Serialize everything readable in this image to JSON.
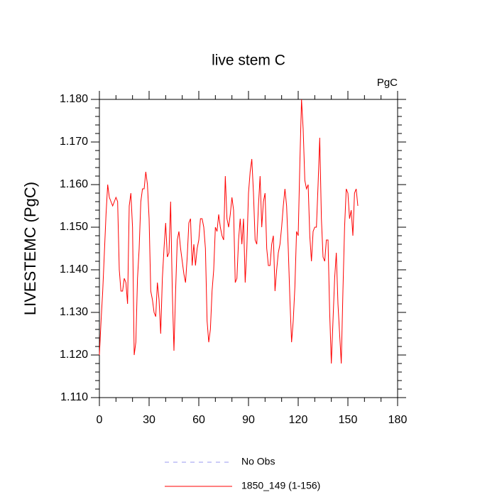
{
  "chart_data": {
    "type": "line",
    "title": "live stem C",
    "units": "PgC",
    "ylabel": "LIVESTEMC  (PgC)",
    "xlim": [
      0,
      180
    ],
    "ylim": [
      1.11,
      1.18
    ],
    "xticks": [
      0,
      30,
      60,
      90,
      120,
      150,
      180
    ],
    "xminorticks": [
      10,
      20,
      40,
      50,
      70,
      80,
      100,
      110,
      130,
      140,
      160,
      170
    ],
    "yticks": [
      {
        "value": 1.11,
        "label": "1.110"
      },
      {
        "value": 1.12,
        "label": "1.120"
      },
      {
        "value": 1.13,
        "label": "1.130"
      },
      {
        "value": 1.14,
        "label": "1.140"
      },
      {
        "value": 1.15,
        "label": "1.150"
      },
      {
        "value": 1.16,
        "label": "1.160"
      },
      {
        "value": 1.17,
        "label": "1.170"
      },
      {
        "value": 1.18,
        "label": "1.180"
      }
    ],
    "yminorticks": [
      1.112,
      1.114,
      1.116,
      1.118,
      1.122,
      1.124,
      1.126,
      1.128,
      1.132,
      1.134,
      1.136,
      1.138,
      1.142,
      1.144,
      1.146,
      1.148,
      1.152,
      1.154,
      1.156,
      1.158,
      1.162,
      1.164,
      1.166,
      1.168,
      1.172,
      1.174,
      1.176,
      1.178
    ],
    "legend": [
      {
        "name": "No Obs",
        "color": "#9a9af0",
        "dash": "6 6"
      }
    ],
    "x": [
      0,
      1,
      2,
      3,
      4,
      5,
      6,
      7,
      8,
      9,
      10,
      11,
      12,
      13,
      14,
      15,
      16,
      17,
      18,
      19,
      20,
      21,
      22,
      23,
      24,
      25,
      26,
      27,
      28,
      29,
      30,
      31,
      32,
      33,
      34,
      35,
      36,
      37,
      38,
      39,
      40,
      41,
      42,
      43,
      44,
      45,
      46,
      47,
      48,
      49,
      50,
      51,
      52,
      53,
      54,
      55,
      56,
      57,
      58,
      59,
      60,
      61,
      62,
      63,
      64,
      65,
      66,
      67,
      68,
      69,
      70,
      71,
      72,
      73,
      74,
      75,
      76,
      77,
      78,
      79,
      80,
      81,
      82,
      83,
      84,
      85,
      86,
      87,
      88,
      89,
      90,
      91,
      92,
      93,
      94,
      95,
      96,
      97,
      98,
      99,
      100,
      101,
      102,
      103,
      104,
      105,
      106,
      107,
      108,
      109,
      110,
      111,
      112,
      113,
      114,
      115,
      116,
      117,
      118,
      119,
      120,
      121,
      122,
      123,
      124,
      125,
      126,
      127,
      128,
      129,
      130,
      131,
      132,
      133,
      134,
      135,
      136,
      137,
      138,
      139,
      140,
      141,
      142,
      143,
      144,
      145,
      146,
      147,
      148,
      149,
      150,
      151,
      152,
      153,
      154,
      155,
      156
    ],
    "series": [
      {
        "name": "1850_149 (1-156)",
        "color": "#ff0000",
        "values": [
          1.12,
          1.128,
          1.135,
          1.144,
          1.153,
          1.16,
          1.157,
          1.156,
          1.155,
          1.156,
          1.157,
          1.156,
          1.14,
          1.135,
          1.135,
          1.138,
          1.137,
          1.132,
          1.155,
          1.158,
          1.15,
          1.12,
          1.123,
          1.138,
          1.145,
          1.156,
          1.159,
          1.159,
          1.163,
          1.16,
          1.152,
          1.135,
          1.133,
          1.13,
          1.129,
          1.137,
          1.133,
          1.125,
          1.138,
          1.145,
          1.151,
          1.143,
          1.144,
          1.156,
          1.135,
          1.121,
          1.135,
          1.147,
          1.149,
          1.145,
          1.142,
          1.139,
          1.137,
          1.143,
          1.151,
          1.152,
          1.141,
          1.146,
          1.141,
          1.145,
          1.147,
          1.152,
          1.152,
          1.15,
          1.145,
          1.128,
          1.123,
          1.126,
          1.135,
          1.14,
          1.15,
          1.149,
          1.153,
          1.15,
          1.148,
          1.147,
          1.162,
          1.152,
          1.15,
          1.153,
          1.157,
          1.154,
          1.137,
          1.138,
          1.147,
          1.152,
          1.146,
          1.152,
          1.137,
          1.145,
          1.158,
          1.163,
          1.166,
          1.158,
          1.147,
          1.146,
          1.155,
          1.162,
          1.15,
          1.156,
          1.158,
          1.145,
          1.141,
          1.141,
          1.146,
          1.148,
          1.135,
          1.14,
          1.144,
          1.146,
          1.15,
          1.155,
          1.159,
          1.155,
          1.145,
          1.133,
          1.123,
          1.128,
          1.136,
          1.149,
          1.148,
          1.165,
          1.18,
          1.173,
          1.161,
          1.159,
          1.16,
          1.148,
          1.142,
          1.149,
          1.15,
          1.15,
          1.16,
          1.171,
          1.152,
          1.143,
          1.142,
          1.147,
          1.147,
          1.13,
          1.118,
          1.128,
          1.138,
          1.144,
          1.132,
          1.125,
          1.118,
          1.135,
          1.15,
          1.159,
          1.158,
          1.152,
          1.154,
          1.148,
          1.158,
          1.159,
          1.155
        ]
      }
    ]
  }
}
